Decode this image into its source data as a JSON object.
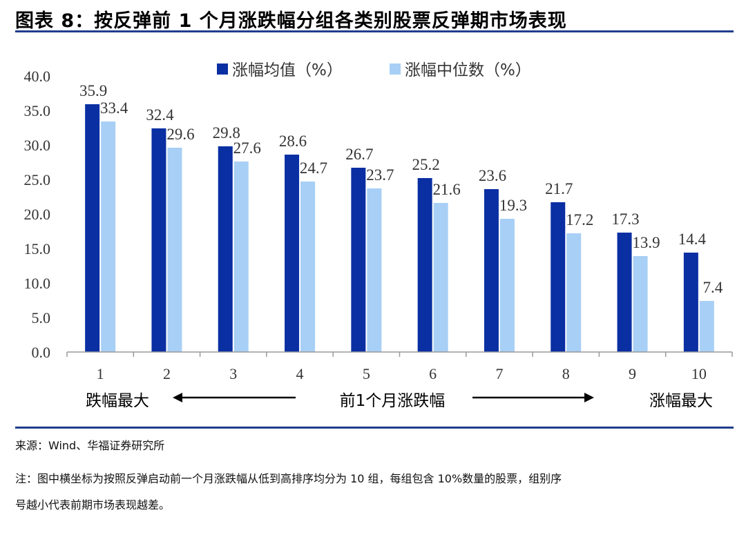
{
  "header": {
    "title": "图表 8：按反弹前 1 个月涨跌幅分组各类别股票反弹期市场表现"
  },
  "colors": {
    "mean": "#0a2fa3",
    "median": "#a8cff5",
    "rule": "#1f3d8a",
    "axis": "#999999"
  },
  "chart_data": {
    "type": "bar",
    "categories": [
      "1",
      "2",
      "3",
      "4",
      "5",
      "6",
      "7",
      "8",
      "9",
      "10"
    ],
    "series": [
      {
        "name": "涨幅均值（%）",
        "values": [
          35.9,
          32.4,
          29.8,
          28.6,
          26.7,
          25.2,
          23.6,
          21.7,
          17.3,
          14.4
        ]
      },
      {
        "name": "涨幅中位数（%）",
        "values": [
          33.4,
          29.6,
          27.6,
          24.7,
          23.7,
          21.6,
          19.3,
          17.2,
          13.9,
          7.4
        ]
      }
    ],
    "ylim": [
      0,
      40
    ],
    "yticks": [
      "0.0",
      "5.0",
      "10.0",
      "15.0",
      "20.0",
      "25.0",
      "30.0",
      "35.0",
      "40.0"
    ],
    "legend_position": "top",
    "grid": false
  },
  "annotation": {
    "left": "跌幅最大",
    "center": "前1个月涨跌幅",
    "right": "涨幅最大"
  },
  "footer": {
    "source": "来源：Wind、华福证券研究所",
    "note_line1": "注：图中横坐标为按照反弹启动前一个月涨跌幅从低到高排序均分为 10 组，每组包含 10%数量的股票，组别序",
    "note_line2": "号越小代表前期市场表现越差。"
  }
}
